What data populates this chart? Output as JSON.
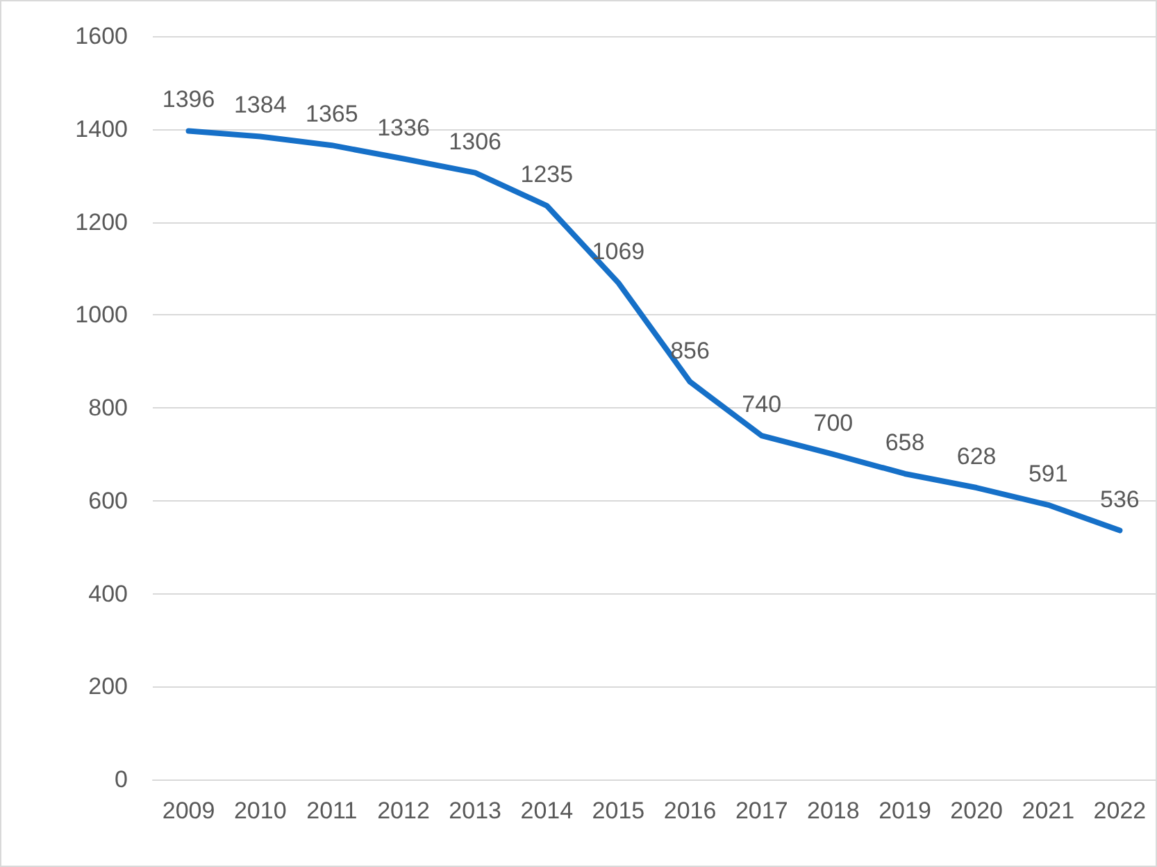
{
  "chart_data": {
    "type": "line",
    "categories": [
      "2009",
      "2010",
      "2011",
      "2012",
      "2013",
      "2014",
      "2015",
      "2016",
      "2017",
      "2018",
      "2019",
      "2020",
      "2021",
      "2022"
    ],
    "values": [
      1396,
      1384,
      1365,
      1336,
      1306,
      1235,
      1069,
      856,
      740,
      700,
      658,
      628,
      591,
      536
    ],
    "color": "#1670c8",
    "ylim": [
      0,
      1600
    ],
    "yticks": [
      0,
      200,
      400,
      600,
      800,
      1000,
      1200,
      1400,
      1600
    ],
    "grid": "y",
    "data_labels": true,
    "marker": "none"
  }
}
